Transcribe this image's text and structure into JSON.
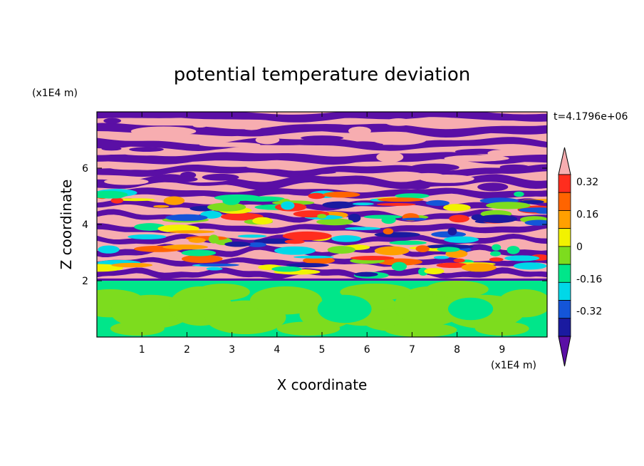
{
  "chart_data": {
    "type": "heatmap",
    "title": "potential temperature deviation",
    "xlabel": "X coordinate",
    "ylabel": "Z coordinate",
    "x_unit": "(x1E4 m)",
    "y_unit": "(x1E4 m)",
    "time_label": "t=4.1796e+06",
    "xlim": [
      0,
      10
    ],
    "ylim": [
      0,
      8
    ],
    "x_ticks": [
      1,
      2,
      3,
      4,
      5,
      6,
      7,
      8,
      9
    ],
    "y_ticks": [
      2,
      4,
      6
    ],
    "colorbar": {
      "levels": [
        -0.4,
        -0.32,
        -0.24,
        -0.16,
        -0.08,
        0,
        0.08,
        0.16,
        0.24,
        0.32,
        0.4
      ],
      "labels": [
        "0.32",
        "0.16",
        "0",
        "-0.16",
        "-0.32"
      ],
      "label_values": [
        0.32,
        0.16,
        0,
        -0.16,
        -0.32
      ],
      "colors": [
        "#5a0fa5",
        "#1a1aa0",
        "#1455d8",
        "#00d8e8",
        "#00e68a",
        "#7ddc1e",
        "#f2f200",
        "#ffa000",
        "#ff6400",
        "#ff2d1e",
        "#f7adb0"
      ],
      "extend": "both"
    },
    "regions": [
      {
        "zrange": [
          0,
          2
        ],
        "description_values": [
          0,
          0.08
        ]
      },
      {
        "zrange": [
          2,
          8
        ],
        "description_values": [
          -0.4,
          0.4
        ]
      }
    ]
  },
  "colors": {
    "pink": "#f7adb0",
    "purple": "#5a0fa5",
    "green": "#00e68a",
    "lime": "#7ddc1e"
  }
}
